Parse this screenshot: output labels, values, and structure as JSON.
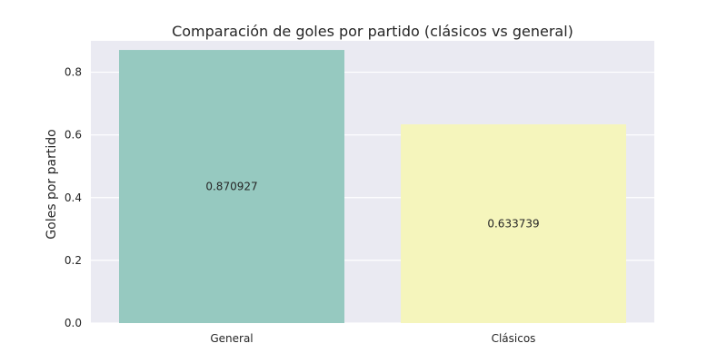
{
  "chart_data": {
    "type": "bar",
    "title": "Comparación de goles por partido (clásicos vs general)",
    "xlabel": "",
    "ylabel": "Goles por partido",
    "categories": [
      "General",
      "Clásicos"
    ],
    "values": [
      0.870927,
      0.633739
    ],
    "data_labels": [
      "0.870927",
      "0.633739"
    ],
    "colors": [
      "#96c9c0",
      "#f5f5bc"
    ],
    "ylim": [
      0,
      0.9
    ],
    "yticks": [
      0.0,
      0.2,
      0.4,
      0.6,
      0.8
    ],
    "ytick_labels": [
      "0.0",
      "0.2",
      "0.4",
      "0.6",
      "0.8"
    ],
    "grid": true,
    "background": "#eaeaf2"
  }
}
